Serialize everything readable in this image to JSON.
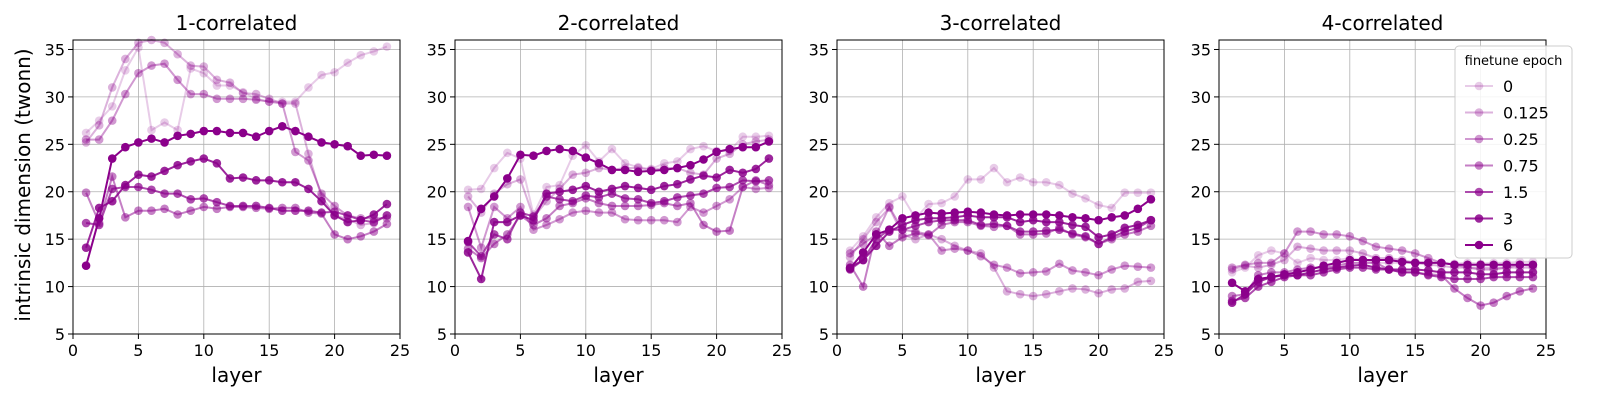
{
  "figure": {
    "ylabel": "intrinsic dimension (twonn)",
    "xlabel": "layer",
    "legend_title": "finetune epoch",
    "legend_entries": [
      "0",
      "0.125",
      "0.25",
      "0.75",
      "1.5",
      "3",
      "6"
    ],
    "series_color": "#8b008b",
    "series_opacity": [
      0.2,
      0.3,
      0.4,
      0.5,
      0.7,
      0.85,
      1.0
    ]
  },
  "chart_data": [
    {
      "type": "line",
      "title": "1-correlated",
      "xlabel": "layer",
      "ylabel": "intrinsic dimension (twonn)",
      "xlim": [
        0,
        25
      ],
      "ylim": [
        5,
        36
      ],
      "xticks": [
        0,
        5,
        10,
        15,
        20,
        25
      ],
      "yticks": [
        5,
        10,
        15,
        20,
        25,
        30,
        35
      ],
      "grid": true,
      "x": [
        1,
        2,
        3,
        4,
        5,
        6,
        7,
        8,
        9,
        10,
        11,
        12,
        13,
        14,
        15,
        16,
        17,
        18,
        19,
        20,
        21,
        22,
        23,
        24
      ],
      "series": [
        {
          "name": "0",
          "values": [
            26.2,
            27.5,
            29.0,
            32.8,
            35.2,
            26.5,
            27.3,
            26.5,
            33.0,
            32.5,
            31.2,
            31.2,
            30.5,
            29.8,
            29.5,
            29.5,
            29.5,
            31.0,
            32.3,
            32.6,
            33.6,
            34.4,
            34.8,
            35.3
          ]
        },
        {
          "name": "0.125",
          "values": [
            25.2,
            27.0,
            31.0,
            34.0,
            35.7,
            36.0,
            35.7,
            34.5,
            33.3,
            33.2,
            31.8,
            31.5,
            30.4,
            30.3,
            29.8,
            29.3,
            29.3,
            24.0,
            19.5,
            17.5,
            17.1,
            16.5,
            16.7,
            17.5
          ]
        },
        {
          "name": "0.25",
          "values": [
            25.5,
            25.5,
            27.5,
            30.3,
            32.5,
            33.3,
            33.5,
            31.8,
            30.3,
            30.3,
            29.8,
            29.8,
            29.8,
            29.7,
            29.5,
            29.3,
            24.2,
            23.3,
            19.8,
            18.5,
            17.5,
            17.2,
            17.2,
            17.2
          ]
        },
        {
          "name": "0.75",
          "values": [
            19.9,
            16.7,
            21.6,
            17.3,
            18.0,
            18.0,
            18.2,
            17.6,
            18.0,
            18.4,
            18.2,
            18.4,
            18.4,
            18.3,
            18.2,
            18.3,
            18.3,
            17.8,
            17.7,
            15.5,
            15.0,
            15.3,
            15.8,
            16.6
          ]
        },
        {
          "name": "1.5",
          "values": [
            16.7,
            16.5,
            20.3,
            20.5,
            20.5,
            20.2,
            19.8,
            19.8,
            19.2,
            19.3,
            18.9,
            18.5,
            18.5,
            18.5,
            18.3,
            18.0,
            18.0,
            18.0,
            17.8,
            17.9,
            17.5,
            17.0,
            16.8,
            17.5
          ]
        },
        {
          "name": "3",
          "values": [
            14.1,
            18.3,
            19.0,
            20.7,
            21.8,
            21.6,
            22.2,
            22.8,
            23.2,
            23.5,
            23.0,
            21.4,
            21.5,
            21.2,
            21.2,
            21.0,
            21.0,
            20.3,
            19.0,
            17.5,
            16.8,
            17.0,
            17.6,
            18.7
          ]
        },
        {
          "name": "6",
          "values": [
            12.2,
            17.2,
            23.5,
            24.7,
            25.2,
            25.6,
            25.2,
            25.9,
            26.1,
            26.4,
            26.4,
            26.2,
            26.2,
            25.8,
            26.4,
            26.9,
            26.4,
            25.8,
            25.2,
            25.0,
            24.8,
            23.8,
            23.9,
            23.8
          ]
        }
      ]
    },
    {
      "type": "line",
      "title": "2-correlated",
      "xlabel": "layer",
      "ylabel": "",
      "xlim": [
        0,
        25
      ],
      "ylim": [
        5,
        36
      ],
      "xticks": [
        0,
        5,
        10,
        15,
        20,
        25
      ],
      "yticks": [
        5,
        10,
        15,
        20,
        25,
        30,
        35
      ],
      "grid": true,
      "x": [
        1,
        2,
        3,
        4,
        5,
        6,
        7,
        8,
        9,
        10,
        11,
        12,
        13,
        14,
        15,
        16,
        17,
        18,
        19,
        20,
        21,
        22,
        23,
        24
      ],
      "series": [
        {
          "name": "0",
          "values": [
            20.2,
            20.3,
            22.5,
            24.1,
            23.5,
            17.6,
            20.5,
            20.7,
            23.8,
            24.9,
            23.2,
            24.5,
            23.0,
            22.6,
            22.4,
            23.0,
            23.2,
            24.5,
            24.8,
            24.3,
            24.3,
            25.8,
            25.8,
            25.9
          ]
        },
        {
          "name": "0.125",
          "values": [
            19.5,
            17.8,
            19.8,
            20.8,
            21.3,
            17.3,
            19.0,
            20.3,
            21.8,
            22.0,
            22.5,
            22.3,
            22.5,
            22.5,
            22.3,
            22.5,
            22.5,
            22.0,
            21.8,
            23.5,
            24.0,
            25.0,
            25.3,
            25.5
          ]
        },
        {
          "name": "0.25",
          "values": [
            18.4,
            14.1,
            18.4,
            17.2,
            18.4,
            16.0,
            16.5,
            17.1,
            17.8,
            18.0,
            17.8,
            17.8,
            17.1,
            17.0,
            17.0,
            17.0,
            16.8,
            18.4,
            17.8,
            18.5,
            19.2,
            20.5,
            20.3,
            20.4
          ]
        },
        {
          "name": "0.75",
          "values": [
            14.0,
            13.0,
            14.5,
            15.5,
            17.5,
            16.5,
            17.2,
            18.5,
            18.8,
            19.3,
            18.8,
            18.5,
            18.5,
            18.5,
            18.6,
            18.8,
            18.5,
            18.8,
            16.5,
            15.8,
            15.9,
            20.5,
            21.2,
            20.7
          ]
        },
        {
          "name": "1.5",
          "values": [
            14.7,
            13.2,
            15.5,
            15.0,
            17.8,
            17.4,
            19.5,
            19.2,
            19.0,
            19.6,
            19.4,
            19.8,
            19.3,
            19.2,
            18.8,
            19.0,
            19.4,
            19.6,
            19.8,
            20.4,
            20.5,
            21.2,
            21.1,
            21.2
          ]
        },
        {
          "name": "3",
          "values": [
            13.6,
            10.8,
            16.8,
            16.8,
            17.5,
            17.0,
            19.8,
            20.0,
            20.2,
            20.6,
            20.0,
            20.3,
            20.6,
            20.4,
            20.2,
            20.6,
            20.8,
            21.3,
            21.7,
            21.5,
            22.3,
            22.0,
            22.4,
            23.5
          ]
        },
        {
          "name": "6",
          "values": [
            14.8,
            18.2,
            19.5,
            21.4,
            23.9,
            23.8,
            24.3,
            24.5,
            24.3,
            23.6,
            23.0,
            22.3,
            22.3,
            22.1,
            22.2,
            22.3,
            22.5,
            22.8,
            23.4,
            24.2,
            24.5,
            24.7,
            24.7,
            25.3
          ]
        }
      ]
    },
    {
      "type": "line",
      "title": "3-correlated",
      "xlabel": "layer",
      "ylabel": "",
      "xlim": [
        0,
        25
      ],
      "ylim": [
        5,
        36
      ],
      "xticks": [
        0,
        5,
        10,
        15,
        20,
        25
      ],
      "yticks": [
        5,
        10,
        15,
        20,
        25,
        30,
        35
      ],
      "grid": true,
      "x": [
        1,
        2,
        3,
        4,
        5,
        6,
        7,
        8,
        9,
        10,
        11,
        12,
        13,
        14,
        15,
        16,
        17,
        18,
        19,
        20,
        21,
        22,
        23,
        24
      ],
      "series": [
        {
          "name": "0",
          "values": [
            13.8,
            15.3,
            17.3,
            18.8,
            19.5,
            17.2,
            18.7,
            18.8,
            19.5,
            21.3,
            21.3,
            22.5,
            21.0,
            21.5,
            21.0,
            21.0,
            20.7,
            19.8,
            19.3,
            18.6,
            18.3,
            19.9,
            19.9,
            19.9
          ]
        },
        {
          "name": "0.125",
          "values": [
            13.1,
            15.0,
            16.8,
            18.3,
            15.5,
            15.0,
            15.5,
            15.0,
            14.3,
            13.8,
            13.5,
            12.0,
            9.5,
            9.2,
            9.0,
            9.2,
            9.5,
            9.8,
            9.7,
            9.3,
            9.7,
            9.8,
            10.5,
            10.6
          ]
        },
        {
          "name": "0.25",
          "values": [
            13.5,
            14.5,
            15.5,
            18.4,
            16.0,
            15.8,
            15.5,
            13.8,
            14.0,
            13.8,
            13.2,
            12.3,
            12.0,
            11.4,
            11.5,
            11.6,
            12.4,
            11.7,
            11.5,
            11.2,
            11.8,
            12.2,
            12.1,
            12.0
          ]
        },
        {
          "name": "0.75",
          "values": [
            12.3,
            10.0,
            15.8,
            14.3,
            15.2,
            15.6,
            15.4,
            16.5,
            16.8,
            16.8,
            16.4,
            16.3,
            16.4,
            15.5,
            15.5,
            15.6,
            16.2,
            15.5,
            15.2,
            14.5,
            15.0,
            15.5,
            15.8,
            16.4
          ]
        },
        {
          "name": "1.5",
          "values": [
            11.8,
            12.8,
            15.0,
            16.0,
            16.0,
            16.4,
            16.8,
            17.0,
            17.0,
            17.0,
            16.5,
            16.6,
            16.4,
            15.8,
            15.8,
            15.9,
            16.0,
            15.6,
            15.3,
            14.5,
            15.2,
            15.8,
            16.2,
            17.0
          ]
        },
        {
          "name": "3",
          "values": [
            12.0,
            12.8,
            14.3,
            15.8,
            16.5,
            17.0,
            17.2,
            17.2,
            17.3,
            17.5,
            17.3,
            17.3,
            17.3,
            16.8,
            17.0,
            16.8,
            16.8,
            16.5,
            16.3,
            15.2,
            15.5,
            16.2,
            16.5,
            17.0
          ]
        },
        {
          "name": "6",
          "values": [
            11.9,
            13.6,
            15.5,
            16.0,
            17.2,
            17.5,
            17.8,
            17.7,
            17.8,
            17.9,
            17.8,
            17.6,
            17.5,
            17.6,
            17.6,
            17.6,
            17.5,
            17.3,
            17.2,
            17.0,
            17.3,
            17.5,
            18.2,
            19.2
          ]
        }
      ]
    },
    {
      "type": "line",
      "title": "4-correlated",
      "xlabel": "layer",
      "ylabel": "",
      "xlim": [
        0,
        25
      ],
      "ylim": [
        5,
        36
      ],
      "xticks": [
        0,
        5,
        10,
        15,
        20,
        25
      ],
      "yticks": [
        5,
        10,
        15,
        20,
        25,
        30,
        35
      ],
      "grid": true,
      "legend": "top-right",
      "x": [
        1,
        2,
        3,
        4,
        5,
        6,
        7,
        8,
        9,
        10,
        11,
        12,
        13,
        14,
        15,
        16,
        17,
        18,
        19,
        20,
        21,
        22,
        23,
        24
      ],
      "series": [
        {
          "name": "0",
          "values": [
            11.5,
            12.0,
            13.3,
            13.8,
            13.5,
            12.5,
            13.0,
            12.8,
            12.8,
            13.0,
            12.8,
            12.5,
            12.5,
            12.5,
            12.6,
            12.6,
            12.5,
            12.4,
            12.5,
            12.4,
            12.5,
            12.5,
            12.6,
            12.6
          ]
        },
        {
          "name": "0.125",
          "values": [
            11.8,
            12.2,
            12.0,
            12.3,
            12.8,
            14.2,
            14.0,
            13.8,
            13.8,
            13.8,
            13.5,
            13.0,
            13.0,
            12.8,
            12.5,
            12.3,
            12.2,
            12.0,
            12.0,
            12.0,
            12.0,
            12.0,
            12.0,
            12.0
          ]
        },
        {
          "name": "0.25",
          "values": [
            12.0,
            12.3,
            12.5,
            12.5,
            13.5,
            15.8,
            15.8,
            15.5,
            15.5,
            15.3,
            14.8,
            14.2,
            14.0,
            13.8,
            13.5,
            13.0,
            12.5,
            12.3,
            12.0,
            11.8,
            11.8,
            12.0,
            12.3,
            12.2
          ]
        },
        {
          "name": "0.75",
          "values": [
            9.0,
            9.2,
            11.2,
            11.5,
            11.5,
            11.8,
            12.0,
            12.0,
            12.2,
            12.5,
            12.5,
            12.5,
            11.8,
            11.5,
            11.5,
            11.3,
            11.2,
            9.8,
            8.8,
            8.0,
            8.3,
            9.0,
            9.5,
            9.8
          ]
        },
        {
          "name": "1.5",
          "values": [
            8.5,
            8.8,
            10.0,
            10.5,
            11.0,
            11.2,
            11.2,
            11.5,
            11.8,
            12.0,
            12.0,
            11.8,
            11.8,
            11.5,
            11.5,
            11.2,
            11.0,
            10.8,
            10.8,
            10.8,
            11.0,
            11.0,
            11.0,
            11.0
          ]
        },
        {
          "name": "3",
          "values": [
            8.3,
            9.2,
            10.5,
            11.0,
            11.2,
            11.2,
            11.5,
            11.8,
            12.0,
            12.2,
            12.3,
            12.0,
            11.8,
            11.8,
            11.8,
            11.7,
            11.5,
            11.5,
            11.5,
            11.3,
            11.3,
            11.5,
            11.5,
            11.5
          ]
        },
        {
          "name": "6",
          "values": [
            10.4,
            9.5,
            10.8,
            11.0,
            11.3,
            11.5,
            11.8,
            12.2,
            12.5,
            12.8,
            12.8,
            12.8,
            12.8,
            12.6,
            12.5,
            12.5,
            12.5,
            12.3,
            12.3,
            12.3,
            12.3,
            12.3,
            12.3,
            12.3
          ]
        }
      ]
    }
  ]
}
